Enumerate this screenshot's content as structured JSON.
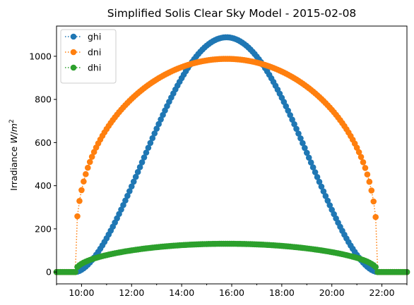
{
  "chart_data": {
    "type": "line",
    "title": "Simplified Solis Clear Sky Model - 2015-02-08",
    "xlabel": "",
    "ylabel": "Irradiance W/m²",
    "x_range_hours": [
      9.0,
      23.0
    ],
    "xticks": [
      {
        "hour": 10,
        "label": "10:00"
      },
      {
        "hour": 12,
        "label": "12:00"
      },
      {
        "hour": 14,
        "label": "14:00"
      },
      {
        "hour": 16,
        "label": "16:00"
      },
      {
        "hour": 18,
        "label": "18:00"
      },
      {
        "hour": 20,
        "label": "20:00"
      },
      {
        "hour": 22,
        "label": "22:00"
      }
    ],
    "ylim": [
      -55,
      1140
    ],
    "yticks": [
      0,
      200,
      400,
      600,
      800,
      1000
    ],
    "grid": false,
    "legend_position": "top-left",
    "marker": "circle",
    "line_style": "dotted",
    "sunrise_hour": 9.75,
    "sunset_hour": 21.83,
    "sample_interval_minutes": 5,
    "series": [
      {
        "name": "ghi",
        "color": "#1f77b4",
        "peak_value": 1088,
        "peak_hour": 15.8
      },
      {
        "name": "dni",
        "color": "#ff7f0e",
        "peak_value": 988,
        "peak_hour": 15.8
      },
      {
        "name": "dhi",
        "color": "#2ca02c",
        "peak_value": 131,
        "peak_hour": 15.8
      }
    ]
  }
}
